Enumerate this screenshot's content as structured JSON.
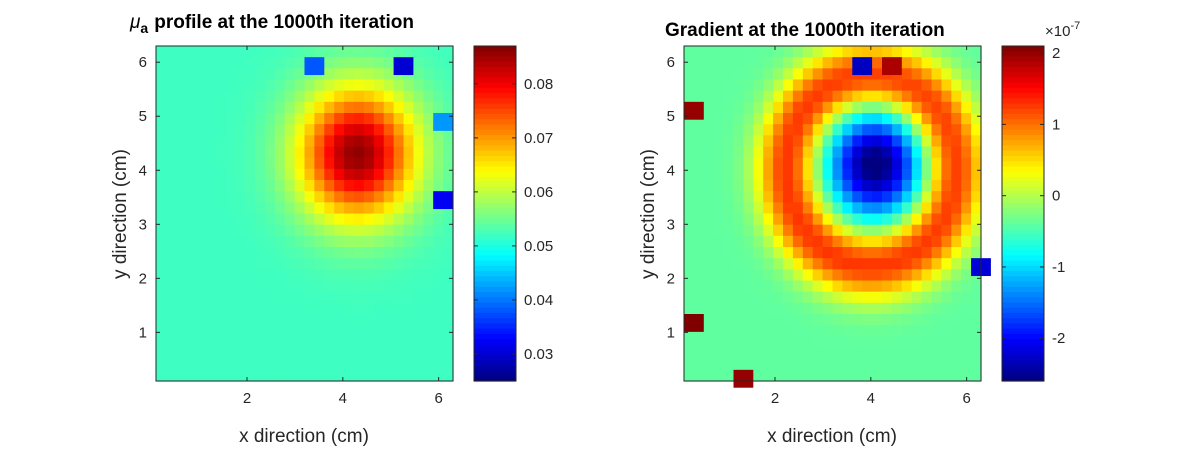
{
  "figure": {
    "background": "#ffffff",
    "colormap": "jet"
  },
  "chart_data": [
    {
      "type": "heatmap",
      "title": "μa profile at the 1000th iteration",
      "title_symbol": "μ",
      "title_subscript": "a",
      "title_text": "profile at the 1000th iteration",
      "xlabel": "x direction (cm)",
      "ylabel": "y direction (cm)",
      "xlim": [
        0.1,
        6.3
      ],
      "ylim": [
        0.1,
        6.3
      ],
      "xticks": [
        2,
        4,
        6
      ],
      "yticks": [
        1,
        2,
        3,
        4,
        5,
        6
      ],
      "colorbar": {
        "range": [
          0.025,
          0.087
        ],
        "ticks": [
          0.03,
          0.04,
          0.05,
          0.06,
          0.07,
          0.08
        ],
        "tick_labels": [
          "0.03",
          "0.04",
          "0.05",
          "0.06",
          "0.07",
          "0.08"
        ],
        "exponent_label": ""
      },
      "grid_size": [
        30,
        30
      ],
      "base_value": 0.052,
      "features": [
        {
          "kind": "gaussian",
          "x": 4.3,
          "y": 4.3,
          "sx": 0.85,
          "sy": 0.85,
          "amplitude": 0.034
        },
        {
          "kind": "spot",
          "x": 3.3,
          "y": 6.05,
          "value": 0.038
        },
        {
          "kind": "spot",
          "x": 5.2,
          "y": 6.05,
          "value": 0.03
        },
        {
          "kind": "spot",
          "x": 6.05,
          "y": 3.6,
          "value": 0.032
        },
        {
          "kind": "spot",
          "x": 6.05,
          "y": 5.0,
          "value": 0.042
        }
      ]
    },
    {
      "type": "heatmap",
      "title": "Gradient at the 1000th iteration",
      "xlabel": "x direction (cm)",
      "ylabel": "y direction (cm)",
      "xlim": [
        0.1,
        6.3
      ],
      "ylim": [
        0.1,
        6.3
      ],
      "xticks": [
        2,
        4,
        6
      ],
      "yticks": [
        1,
        2,
        3,
        4,
        5,
        6
      ],
      "colorbar": {
        "range": [
          -2.6e-07,
          2.1e-07
        ],
        "ticks": [
          -2e-07,
          -1e-07,
          0,
          1e-07,
          2e-07
        ],
        "tick_labels": [
          "-2",
          "-1",
          "0",
          "1",
          "2"
        ],
        "exponent_prefix": "×10",
        "exponent_power": "-7"
      },
      "grid_size": [
        30,
        30
      ],
      "base_value": -4e-08,
      "features": [
        {
          "kind": "gaussian",
          "x": 4.1,
          "y": 4.1,
          "sx": 0.65,
          "sy": 0.65,
          "amplitude": -2.3e-07
        },
        {
          "kind": "ring",
          "x": 4.0,
          "y": 4.0,
          "radius": 1.75,
          "width": 0.45,
          "amplitude": 1.7e-07
        },
        {
          "kind": "spot",
          "x": 4.4,
          "y": 6.0,
          "value": 1.9e-07
        },
        {
          "kind": "spot",
          "x": 0.3,
          "y": 5.2,
          "value": 2e-07
        },
        {
          "kind": "spot",
          "x": 0.3,
          "y": 1.2,
          "value": 2.1e-07
        },
        {
          "kind": "spot",
          "x": 1.2,
          "y": 0.3,
          "value": 2e-07
        },
        {
          "kind": "spot",
          "x": 6.1,
          "y": 2.2,
          "value": -2.2e-07
        },
        {
          "kind": "spot",
          "x": 3.7,
          "y": 6.0,
          "value": -2.3e-07
        }
      ]
    }
  ]
}
